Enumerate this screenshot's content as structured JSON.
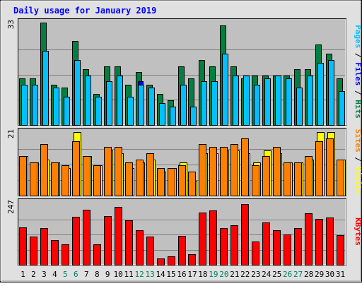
{
  "chart_data": [
    {
      "type": "bar",
      "title": "Daily usage for January 2019",
      "categories": [
        "1",
        "2",
        "3",
        "4",
        "5",
        "6",
        "7",
        "8",
        "9",
        "10",
        "11",
        "12",
        "13",
        "14",
        "15",
        "16",
        "17",
        "18",
        "19",
        "20",
        "21",
        "22",
        "23",
        "24",
        "25",
        "26",
        "27",
        "28",
        "29",
        "30",
        "31"
      ],
      "weekend_categories": [
        "5",
        "6",
        "12",
        "13",
        "19",
        "20",
        "26",
        "27"
      ],
      "y_tick_label": "33",
      "ylim": [
        0,
        33
      ],
      "ylabel_parts": [
        {
          "text": "Pages",
          "color": "#00c0ff"
        },
        {
          "text": " / ",
          "color": "#000000"
        },
        {
          "text": "Files",
          "color": "#0000ff"
        },
        {
          "text": " / ",
          "color": "#000000"
        },
        {
          "text": "Hits",
          "color": "#008040"
        }
      ],
      "series": [
        {
          "name": "Hits",
          "color": "#008040",
          "values": [
            15,
            15,
            33,
            13,
            12,
            27,
            18,
            10,
            19,
            19,
            13,
            17,
            13,
            10,
            8,
            19,
            15,
            21,
            19,
            32,
            19,
            15,
            16,
            16,
            16,
            16,
            18,
            18,
            26,
            23,
            15
          ]
        },
        {
          "name": "Files",
          "color": "#0000ff",
          "values": [
            8,
            7,
            7,
            7,
            7,
            9,
            9,
            6,
            9,
            9,
            7,
            14,
            8,
            6,
            5,
            8,
            6,
            8,
            8,
            10,
            8,
            9,
            7,
            8,
            9,
            7,
            9,
            8,
            8,
            9,
            7
          ]
        },
        {
          "name": "Pages",
          "color": "#00c0ff",
          "values": [
            13,
            13,
            24,
            12,
            9,
            21,
            16,
            9,
            14,
            16,
            9,
            13,
            12,
            7,
            6,
            13,
            6,
            14,
            14,
            23,
            16,
            16,
            13,
            15,
            16,
            15,
            12,
            16,
            20,
            21,
            11
          ]
        }
      ]
    },
    {
      "type": "bar",
      "categories": [
        "1",
        "2",
        "3",
        "4",
        "5",
        "6",
        "7",
        "8",
        "9",
        "10",
        "11",
        "12",
        "13",
        "14",
        "15",
        "16",
        "17",
        "18",
        "19",
        "20",
        "21",
        "22",
        "23",
        "24",
        "25",
        "26",
        "27",
        "28",
        "29",
        "30",
        "31"
      ],
      "y_tick_label": "21",
      "ylim": [
        0,
        21
      ],
      "ylabel_parts": [
        {
          "text": "Sites",
          "color": "#ff8000"
        },
        {
          "text": " / ",
          "color": "#000000"
        },
        {
          "text": "Visits",
          "color": "#ffff00"
        }
      ],
      "series": [
        {
          "name": "Visits",
          "color": "#ffff00",
          "values": [
            13,
            11,
            12,
            11,
            9,
            21,
            13,
            10,
            15,
            14,
            9,
            11,
            12,
            8,
            9,
            11,
            5,
            14,
            14,
            15,
            15,
            14,
            11,
            15,
            14,
            11,
            11,
            12,
            21,
            21,
            12
          ]
        },
        {
          "name": "Sites",
          "color": "#ff8000",
          "values": [
            13,
            11,
            17,
            11,
            10,
            18,
            13,
            10,
            16,
            16,
            11,
            12,
            14,
            9,
            9,
            10,
            8,
            17,
            16,
            16,
            17,
            19,
            10,
            13,
            16,
            11,
            11,
            13,
            18,
            19,
            12
          ]
        }
      ]
    },
    {
      "type": "bar",
      "categories": [
        "1",
        "2",
        "3",
        "4",
        "5",
        "6",
        "7",
        "8",
        "9",
        "10",
        "11",
        "12",
        "13",
        "14",
        "15",
        "16",
        "17",
        "18",
        "19",
        "20",
        "21",
        "22",
        "23",
        "24",
        "25",
        "26",
        "27",
        "28",
        "29",
        "30",
        "31"
      ],
      "y_tick_label": "247",
      "ylim": [
        0,
        247
      ],
      "ylabel_parts": [
        {
          "text": "KBytes",
          "color": "#ff0000"
        }
      ],
      "series": [
        {
          "name": "KBytes",
          "color": "#ff0000",
          "values": [
            150,
            113,
            145,
            97,
            82,
            191,
            220,
            82,
            195,
            230,
            178,
            137,
            111,
            25,
            34,
            115,
            43,
            207,
            217,
            146,
            158,
            242,
            93,
            168,
            137,
            121,
            145,
            204,
            182,
            188,
            118
          ]
        }
      ]
    }
  ]
}
